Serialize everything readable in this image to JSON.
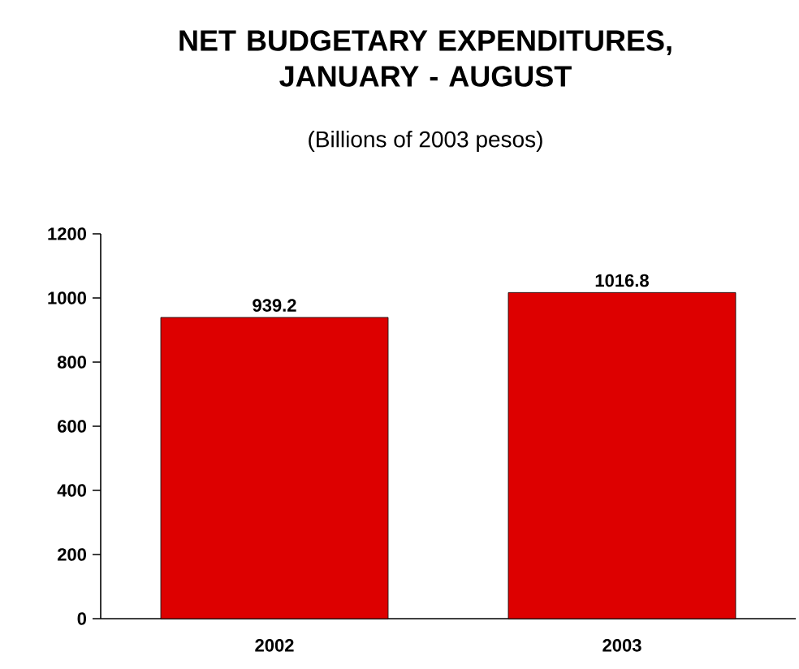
{
  "chart_data": {
    "type": "bar",
    "title": "NET BUDGETARY EXPENDITURES, JANUARY - AUGUST",
    "subtitle": "(Billions of 2003 pesos)",
    "categories": [
      "2002",
      "2003"
    ],
    "values": [
      939.2,
      1016.8
    ],
    "color": "#dd0000",
    "ylim": [
      0,
      1200
    ],
    "yticks": [
      0,
      200,
      400,
      600,
      800,
      1000,
      1200
    ],
    "data_labels": true
  }
}
